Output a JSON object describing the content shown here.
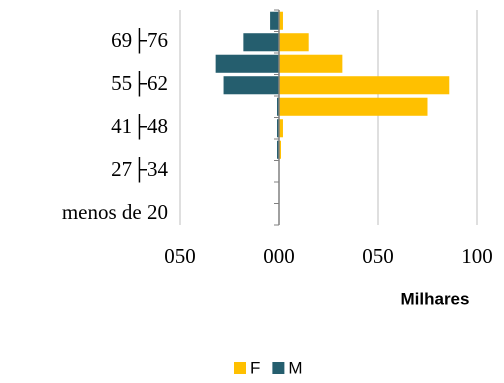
{
  "chart_data": {
    "type": "bar",
    "orientation": "horizontal",
    "categories": [
      "menos de 20",
      null,
      "27├34",
      null,
      "41├48",
      null,
      "55├62",
      null,
      "69├76",
      null
    ],
    "series": [
      {
        "name": "F",
        "color": "#FFC000",
        "values": [
          0,
          0,
          0,
          1,
          2,
          75,
          86,
          32,
          15,
          2
        ]
      },
      {
        "name": "M",
        "color": "#255E6E",
        "values": [
          0,
          0,
          0,
          -1,
          -1,
          -1,
          -28,
          -32,
          -18,
          -4.5
        ]
      }
    ],
    "xlabel": "Milhares",
    "xlim": [
      -50,
      100
    ],
    "xticks": [
      {
        "value": -50,
        "label": "050"
      },
      {
        "value": 0,
        "label": "000"
      },
      {
        "value": 50,
        "label": "050"
      },
      {
        "value": 100,
        "label": "100"
      }
    ],
    "grid": true,
    "legend": "bottom"
  }
}
